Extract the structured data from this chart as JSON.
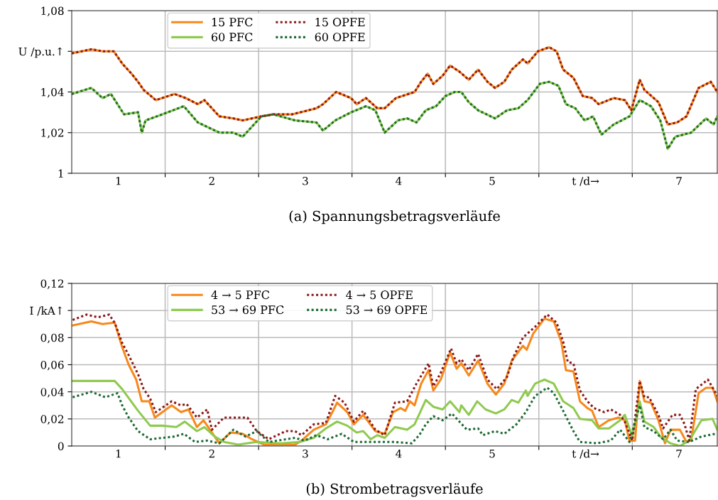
{
  "chart_data": [
    {
      "type": "line",
      "title": "(a) Spannungsbetragsverläufe",
      "grid": true,
      "legend": "top left",
      "marker": "none",
      "xlim": [
        0,
        6.91
      ],
      "xticks": [
        {
          "value": 0.5,
          "label": "1"
        },
        {
          "value": 1.5,
          "label": "2"
        },
        {
          "value": 2.5,
          "label": "3"
        },
        {
          "value": 3.5,
          "label": "4"
        },
        {
          "value": 4.5,
          "label": "5"
        },
        {
          "value": 5.5,
          "label": "t /d→"
        },
        {
          "value": 6.5,
          "label": "7"
        },
        {
          "value": 1,
          "label": null
        },
        {
          "value": 2,
          "label": null
        },
        {
          "value": 3,
          "label": null
        },
        {
          "value": 4,
          "label": null
        },
        {
          "value": 5,
          "label": null
        },
        {
          "value": 6,
          "label": null
        }
      ],
      "ylim": [
        1.0,
        1.08
      ],
      "yticks": [
        1,
        {
          "value": 1.02,
          "label": "1,02"
        },
        {
          "value": 1.04,
          "label": "1,04"
        },
        {
          "value": 1.06,
          "label": "U /p.u.↑"
        },
        {
          "value": 1.08,
          "label": "1,08"
        }
      ],
      "series": [
        {
          "name": "15 PFC",
          "color": "#f7891c",
          "line_style": "solid",
          "x": [
            0.0,
            0.21,
            0.33,
            0.45,
            0.54,
            0.64,
            0.71,
            0.77,
            0.9,
            1.1,
            1.22,
            1.35,
            1.42,
            1.58,
            1.73,
            1.83,
            2.03,
            2.16,
            2.36,
            2.62,
            2.69,
            2.83,
            2.99,
            3.05,
            3.15,
            3.27,
            3.35,
            3.47,
            3.67,
            3.74,
            3.81,
            3.87,
            3.97,
            4.05,
            4.15,
            4.25,
            4.35,
            4.45,
            4.53,
            4.63,
            4.71,
            4.83,
            4.88,
            4.99,
            5.11,
            5.19,
            5.26,
            5.37,
            5.47,
            5.57,
            5.64,
            5.8,
            5.92,
            5.99,
            6.08,
            6.13,
            6.28,
            6.38,
            6.48,
            6.58,
            6.71,
            6.84,
            6.91
          ],
          "values": [
            1.059,
            1.061,
            1.06,
            1.06,
            1.054,
            1.049,
            1.045,
            1.041,
            1.036,
            1.039,
            1.037,
            1.034,
            1.036,
            1.028,
            1.027,
            1.026,
            1.028,
            1.029,
            1.029,
            1.032,
            1.034,
            1.04,
            1.037,
            1.034,
            1.037,
            1.032,
            1.032,
            1.037,
            1.04,
            1.045,
            1.049,
            1.044,
            1.048,
            1.053,
            1.05,
            1.046,
            1.051,
            1.045,
            1.042,
            1.045,
            1.051,
            1.056,
            1.054,
            1.06,
            1.062,
            1.06,
            1.051,
            1.047,
            1.038,
            1.037,
            1.034,
            1.037,
            1.036,
            1.031,
            1.046,
            1.041,
            1.035,
            1.024,
            1.025,
            1.028,
            1.042,
            1.045,
            1.04
          ]
        },
        {
          "name": "60 PFC",
          "color": "#8fca4f",
          "line_style": "solid",
          "x": [
            0.0,
            0.21,
            0.33,
            0.42,
            0.56,
            0.71,
            0.75,
            0.79,
            0.97,
            1.2,
            1.35,
            1.58,
            1.73,
            1.83,
            2.03,
            2.16,
            2.39,
            2.62,
            2.69,
            2.82,
            2.99,
            3.15,
            3.25,
            3.35,
            3.49,
            3.59,
            3.69,
            3.79,
            3.9,
            4.0,
            4.1,
            4.17,
            4.25,
            4.35,
            4.53,
            4.66,
            4.78,
            4.88,
            5.01,
            5.11,
            5.21,
            5.29,
            5.39,
            5.49,
            5.58,
            5.67,
            5.8,
            5.97,
            6.08,
            6.2,
            6.3,
            6.38,
            6.46,
            6.63,
            6.79,
            6.87,
            6.91
          ],
          "values": [
            1.039,
            1.042,
            1.037,
            1.039,
            1.029,
            1.03,
            1.02,
            1.026,
            1.029,
            1.033,
            1.025,
            1.02,
            1.02,
            1.018,
            1.028,
            1.029,
            1.026,
            1.025,
            1.021,
            1.026,
            1.03,
            1.033,
            1.031,
            1.02,
            1.026,
            1.027,
            1.025,
            1.031,
            1.033,
            1.038,
            1.04,
            1.04,
            1.035,
            1.031,
            1.027,
            1.031,
            1.032,
            1.036,
            1.044,
            1.045,
            1.043,
            1.034,
            1.032,
            1.026,
            1.028,
            1.019,
            1.024,
            1.028,
            1.036,
            1.033,
            1.026,
            1.012,
            1.018,
            1.02,
            1.027,
            1.024,
            1.028
          ]
        },
        {
          "name": "15 OPFE",
          "color": "#8b1a1a",
          "line_style": "dotted",
          "x": [
            0.0,
            0.21,
            0.33,
            0.45,
            0.54,
            0.64,
            0.71,
            0.77,
            0.9,
            1.1,
            1.22,
            1.35,
            1.42,
            1.58,
            1.73,
            1.83,
            2.03,
            2.16,
            2.36,
            2.62,
            2.69,
            2.83,
            2.99,
            3.05,
            3.15,
            3.27,
            3.35,
            3.47,
            3.67,
            3.74,
            3.81,
            3.87,
            3.97,
            4.05,
            4.15,
            4.25,
            4.35,
            4.45,
            4.53,
            4.63,
            4.71,
            4.83,
            4.88,
            4.99,
            5.11,
            5.19,
            5.26,
            5.37,
            5.47,
            5.57,
            5.64,
            5.8,
            5.92,
            5.99,
            6.08,
            6.13,
            6.28,
            6.38,
            6.48,
            6.58,
            6.71,
            6.84,
            6.91
          ],
          "values": [
            1.059,
            1.061,
            1.06,
            1.06,
            1.054,
            1.049,
            1.045,
            1.041,
            1.036,
            1.039,
            1.037,
            1.034,
            1.036,
            1.028,
            1.027,
            1.026,
            1.028,
            1.029,
            1.029,
            1.032,
            1.034,
            1.04,
            1.037,
            1.034,
            1.037,
            1.032,
            1.032,
            1.037,
            1.04,
            1.045,
            1.049,
            1.044,
            1.048,
            1.053,
            1.05,
            1.046,
            1.051,
            1.045,
            1.042,
            1.045,
            1.051,
            1.056,
            1.054,
            1.06,
            1.062,
            1.06,
            1.051,
            1.047,
            1.038,
            1.037,
            1.034,
            1.037,
            1.036,
            1.031,
            1.046,
            1.041,
            1.035,
            1.024,
            1.025,
            1.028,
            1.042,
            1.045,
            1.04
          ]
        },
        {
          "name": "60 OPFE",
          "color": "#1e6b34",
          "line_style": "dotted",
          "x": [
            0.0,
            0.21,
            0.33,
            0.42,
            0.56,
            0.71,
            0.75,
            0.79,
            0.97,
            1.2,
            1.35,
            1.58,
            1.73,
            1.83,
            2.03,
            2.16,
            2.39,
            2.62,
            2.69,
            2.82,
            2.99,
            3.15,
            3.25,
            3.35,
            3.49,
            3.59,
            3.69,
            3.79,
            3.9,
            4.0,
            4.1,
            4.17,
            4.25,
            4.35,
            4.53,
            4.66,
            4.78,
            4.88,
            5.01,
            5.11,
            5.21,
            5.29,
            5.39,
            5.49,
            5.58,
            5.67,
            5.8,
            5.97,
            6.08,
            6.2,
            6.3,
            6.38,
            6.46,
            6.63,
            6.79,
            6.87,
            6.91
          ],
          "values": [
            1.039,
            1.042,
            1.037,
            1.039,
            1.029,
            1.03,
            1.02,
            1.026,
            1.029,
            1.033,
            1.025,
            1.02,
            1.02,
            1.018,
            1.028,
            1.029,
            1.026,
            1.025,
            1.021,
            1.026,
            1.03,
            1.033,
            1.031,
            1.02,
            1.026,
            1.027,
            1.025,
            1.031,
            1.033,
            1.038,
            1.04,
            1.04,
            1.035,
            1.031,
            1.027,
            1.031,
            1.032,
            1.036,
            1.044,
            1.045,
            1.043,
            1.034,
            1.032,
            1.026,
            1.028,
            1.019,
            1.024,
            1.028,
            1.036,
            1.033,
            1.026,
            1.012,
            1.018,
            1.02,
            1.027,
            1.024,
            1.028
          ]
        }
      ]
    },
    {
      "type": "line",
      "title": "(b) Strombetragsverläufe",
      "grid": true,
      "legend": "top left",
      "marker": "none",
      "xlim": [
        0,
        6.91
      ],
      "xticks": [
        {
          "value": 0.5,
          "label": "1"
        },
        {
          "value": 1.5,
          "label": "2"
        },
        {
          "value": 2.5,
          "label": "3"
        },
        {
          "value": 3.5,
          "label": "4"
        },
        {
          "value": 4.5,
          "label": "5"
        },
        {
          "value": 5.5,
          "label": "t /d→"
        },
        {
          "value": 6.5,
          "label": "7"
        },
        {
          "value": 1,
          "label": null
        },
        {
          "value": 2,
          "label": null
        },
        {
          "value": 3,
          "label": null
        },
        {
          "value": 4,
          "label": null
        },
        {
          "value": 5,
          "label": null
        },
        {
          "value": 6,
          "label": null
        }
      ],
      "ylim": [
        0,
        0.12
      ],
      "yticks": [
        0,
        {
          "value": 0.02,
          "label": "0,02"
        },
        {
          "value": 0.04,
          "label": "0,04"
        },
        {
          "value": 0.06,
          "label": "0,06"
        },
        {
          "value": 0.08,
          "label": "0,08"
        },
        {
          "value": 0.1,
          "label": "I /kA↑"
        },
        {
          "value": 0.12,
          "label": "0,12"
        }
      ],
      "series": [
        {
          "name": "4 → 5 PFC",
          "color": "#f7891c",
          "line_style": "solid",
          "x": [
            0.01,
            0.21,
            0.33,
            0.46,
            0.54,
            0.61,
            0.69,
            0.75,
            0.83,
            0.89,
            1.07,
            1.17,
            1.25,
            1.34,
            1.41,
            1.48,
            1.58,
            1.7,
            1.83,
            1.93,
            2.06,
            2.24,
            2.39,
            2.46,
            2.59,
            2.72,
            2.79,
            2.84,
            2.95,
            3.02,
            3.12,
            3.25,
            3.35,
            3.44,
            3.52,
            3.57,
            3.62,
            3.67,
            3.74,
            3.82,
            3.87,
            3.95,
            4.05,
            4.12,
            4.17,
            4.25,
            4.35,
            4.45,
            4.54,
            4.63,
            4.71,
            4.83,
            4.87,
            4.94,
            5.06,
            5.16,
            5.24,
            5.29,
            5.37,
            5.44,
            5.52,
            5.57,
            5.64,
            5.75,
            5.85,
            5.92,
            5.97,
            6.03,
            6.08,
            6.13,
            6.2,
            6.28,
            6.35,
            6.41,
            6.51,
            6.58,
            6.63,
            6.71,
            6.79,
            6.86,
            6.91
          ],
          "values": [
            0.089,
            0.092,
            0.09,
            0.091,
            0.073,
            0.06,
            0.049,
            0.033,
            0.033,
            0.021,
            0.03,
            0.025,
            0.027,
            0.014,
            0.019,
            0.012,
            0.002,
            0.01,
            0.009,
            0.005,
            0.001,
            0.001,
            0.001,
            0.004,
            0.012,
            0.016,
            0.025,
            0.032,
            0.025,
            0.016,
            0.023,
            0.011,
            0.009,
            0.025,
            0.028,
            0.026,
            0.033,
            0.03,
            0.046,
            0.056,
            0.041,
            0.049,
            0.069,
            0.057,
            0.061,
            0.052,
            0.063,
            0.046,
            0.038,
            0.046,
            0.063,
            0.074,
            0.071,
            0.083,
            0.094,
            0.092,
            0.077,
            0.056,
            0.055,
            0.033,
            0.028,
            0.026,
            0.014,
            0.019,
            0.021,
            0.019,
            0.004,
            0.004,
            0.048,
            0.033,
            0.032,
            0.019,
            0.002,
            0.012,
            0.012,
            0.003,
            0.004,
            0.039,
            0.043,
            0.043,
            0.033
          ]
        },
        {
          "name": "53 → 69 PFC",
          "color": "#8fca4f",
          "line_style": "solid",
          "x": [
            0.01,
            0.46,
            0.54,
            0.71,
            0.84,
            0.97,
            1.12,
            1.21,
            1.34,
            1.42,
            1.53,
            1.63,
            1.78,
            1.98,
            2.24,
            2.44,
            2.59,
            2.72,
            2.84,
            2.95,
            3.05,
            3.12,
            3.2,
            3.27,
            3.35,
            3.46,
            3.59,
            3.67,
            3.79,
            3.87,
            3.97,
            4.05,
            4.15,
            4.17,
            4.25,
            4.34,
            4.43,
            4.54,
            4.63,
            4.71,
            4.78,
            4.86,
            4.88,
            4.96,
            5.06,
            5.16,
            5.26,
            5.37,
            5.44,
            5.57,
            5.64,
            5.75,
            5.87,
            5.92,
            6.0,
            6.08,
            6.13,
            6.23,
            6.3,
            6.41,
            6.51,
            6.61,
            6.74,
            6.86,
            6.91
          ],
          "values": [
            0.048,
            0.048,
            0.042,
            0.026,
            0.015,
            0.015,
            0.014,
            0.018,
            0.011,
            0.014,
            0.007,
            0.003,
            0.001,
            0.003,
            0.002,
            0.003,
            0.006,
            0.013,
            0.018,
            0.015,
            0.01,
            0.011,
            0.005,
            0.008,
            0.006,
            0.014,
            0.012,
            0.016,
            0.034,
            0.029,
            0.027,
            0.033,
            0.025,
            0.03,
            0.023,
            0.033,
            0.027,
            0.024,
            0.027,
            0.034,
            0.032,
            0.041,
            0.037,
            0.046,
            0.049,
            0.046,
            0.033,
            0.028,
            0.02,
            0.019,
            0.013,
            0.013,
            0.019,
            0.023,
            0.007,
            0.033,
            0.018,
            0.014,
            0.007,
            0.002,
            0.0,
            0.004,
            0.019,
            0.02,
            0.012
          ]
        },
        {
          "name": "4 → 5 OPFE",
          "color": "#8b1a1a",
          "line_style": "dotted",
          "x": [
            0.01,
            0.16,
            0.28,
            0.4,
            0.46,
            0.54,
            0.61,
            0.71,
            0.77,
            0.84,
            0.9,
            1.07,
            1.17,
            1.23,
            1.34,
            1.45,
            1.5,
            1.63,
            1.73,
            1.88,
            1.98,
            2.11,
            2.29,
            2.39,
            2.46,
            2.59,
            2.72,
            2.82,
            2.92,
            3.02,
            3.12,
            3.25,
            3.35,
            3.46,
            3.59,
            3.69,
            3.82,
            3.87,
            3.95,
            4.06,
            4.12,
            4.17,
            4.25,
            4.35,
            4.45,
            4.55,
            4.66,
            4.73,
            4.83,
            4.96,
            5.09,
            5.19,
            5.26,
            5.31,
            5.37,
            5.44,
            5.52,
            5.59,
            5.7,
            5.77,
            5.87,
            5.92,
            6.0,
            6.08,
            6.13,
            6.18,
            6.28,
            6.33,
            6.43,
            6.51,
            6.56,
            6.61,
            6.68,
            6.81,
            6.91
          ],
          "values": [
            0.093,
            0.097,
            0.095,
            0.097,
            0.091,
            0.076,
            0.067,
            0.053,
            0.042,
            0.035,
            0.025,
            0.033,
            0.03,
            0.031,
            0.021,
            0.027,
            0.012,
            0.021,
            0.021,
            0.021,
            0.011,
            0.005,
            0.011,
            0.011,
            0.008,
            0.016,
            0.017,
            0.037,
            0.032,
            0.018,
            0.026,
            0.012,
            0.008,
            0.032,
            0.033,
            0.046,
            0.061,
            0.044,
            0.054,
            0.072,
            0.061,
            0.064,
            0.056,
            0.068,
            0.049,
            0.042,
            0.051,
            0.066,
            0.08,
            0.088,
            0.097,
            0.091,
            0.077,
            0.062,
            0.061,
            0.041,
            0.033,
            0.028,
            0.025,
            0.027,
            0.023,
            0.018,
            0.004,
            0.048,
            0.036,
            0.036,
            0.023,
            0.013,
            0.023,
            0.023,
            0.016,
            0.004,
            0.042,
            0.049,
            0.037
          ]
        },
        {
          "name": "53 → 69 OPFE",
          "color": "#1e6b34",
          "line_style": "dotted",
          "x": [
            0.01,
            0.21,
            0.36,
            0.49,
            0.54,
            0.61,
            0.71,
            0.84,
            0.97,
            1.1,
            1.2,
            1.32,
            1.45,
            1.58,
            1.73,
            1.86,
            1.98,
            2.11,
            2.29,
            2.39,
            2.49,
            2.62,
            2.74,
            2.89,
            3.02,
            3.2,
            3.35,
            3.44,
            3.64,
            3.72,
            3.79,
            3.87,
            3.97,
            4.07,
            4.15,
            4.23,
            4.35,
            4.4,
            4.53,
            4.63,
            4.76,
            4.86,
            4.96,
            5.09,
            5.16,
            5.26,
            5.37,
            5.44,
            5.62,
            5.77,
            5.87,
            5.97,
            6.08,
            6.13,
            6.23,
            6.33,
            6.41,
            6.48,
            6.61,
            6.74,
            6.89
          ],
          "values": [
            0.036,
            0.04,
            0.036,
            0.039,
            0.03,
            0.021,
            0.011,
            0.005,
            0.006,
            0.007,
            0.009,
            0.003,
            0.004,
            0.002,
            0.012,
            0.007,
            0.011,
            0.003,
            0.005,
            0.006,
            0.004,
            0.008,
            0.005,
            0.009,
            0.003,
            0.003,
            0.003,
            0.003,
            0.002,
            0.008,
            0.016,
            0.022,
            0.019,
            0.024,
            0.018,
            0.012,
            0.013,
            0.008,
            0.011,
            0.009,
            0.016,
            0.025,
            0.037,
            0.043,
            0.039,
            0.026,
            0.011,
            0.003,
            0.002,
            0.004,
            0.012,
            0.003,
            0.03,
            0.014,
            0.011,
            0.005,
            0.012,
            0.004,
            0.003,
            0.007,
            0.009
          ]
        }
      ]
    }
  ]
}
